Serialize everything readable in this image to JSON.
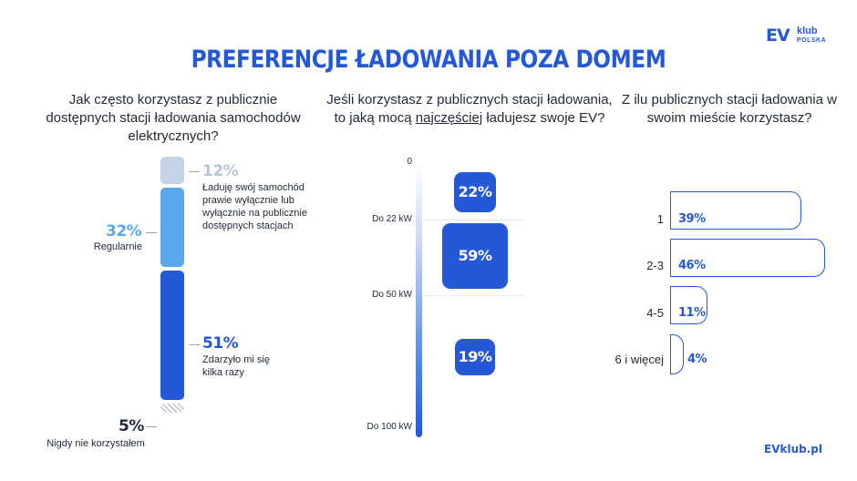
{
  "header": {
    "title": "PREFERENCJE ŁADOWANIA POZA DOMEM",
    "logo_main": "EV",
    "logo_sub": "klub",
    "logo_sub2": "POLSKA"
  },
  "footer": {
    "site": "EVklub.pl"
  },
  "colors": {
    "accent": "#2458d6",
    "mid": "#5aa8ec",
    "light": "#c5d3e6",
    "hatch": "#bfc5cf"
  },
  "chart_data": [
    {
      "type": "bar",
      "subtype": "stacked",
      "title": "Jak często korzystasz z publicznie dostępnych stacji ładowania samochodów elektrycznych?",
      "categories": [
        "Ładuję swój samochód prawie wyłącznie lub wyłącznie na publicznie dostępnych stacjach",
        "Regularnie",
        "Zdarzyło mi się kilka razy",
        "Nigdy nie korzystałem"
      ],
      "values": [
        12,
        32,
        51,
        5
      ],
      "labels": [
        "12%",
        "32%",
        "51%",
        "5%"
      ]
    },
    {
      "type": "bar",
      "title_parts": [
        "Jeśli korzystasz z publicznych stacji ładowania, to jaką mocą ",
        "najczęściej",
        " ładujesz swoje EV?"
      ],
      "axis_ticks": [
        "0",
        "Do 22 kW",
        "Do 50 kW",
        "Do 100 kW"
      ],
      "categories": [
        "Do 22 kW",
        "Do 50 kW",
        "Do 100 kW"
      ],
      "values": [
        22,
        59,
        19
      ],
      "labels": [
        "22%",
        "59%",
        "19%"
      ]
    },
    {
      "type": "bar",
      "orientation": "horizontal",
      "title": "Z ilu publicznych stacji ładowania w swoim mieście korzystasz?",
      "categories": [
        "1",
        "2-3",
        "4-5",
        "6 i więcej"
      ],
      "values": [
        39,
        46,
        11,
        4
      ],
      "labels": [
        "39%",
        "46%",
        "11%",
        "4%"
      ]
    }
  ]
}
